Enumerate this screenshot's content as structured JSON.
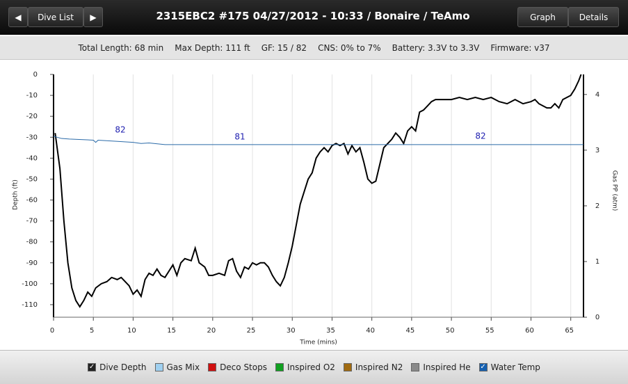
{
  "header": {
    "nav_label": "Dive List",
    "title": "2315EBC2 #175 04/27/2012 - 10:33  / Bonaire / TeAmo",
    "tabs": [
      "Graph",
      "Details"
    ]
  },
  "info": [
    "Total Length: 68 min",
    "Max Depth: 111 ft",
    "GF: 15 / 82",
    "CNS: 0% to 7%",
    "Battery: 3.3V to 3.3V",
    "Firmware: v37"
  ],
  "chart_data": {
    "type": "line",
    "xlabel": "Time (mins)",
    "ylabel": "Depth (ft)",
    "y2label": "Gas PP (atm)",
    "xlim": [
      0,
      66.6
    ],
    "xticks": [
      0,
      5,
      10,
      15,
      20,
      25,
      30,
      35,
      40,
      45,
      50,
      55,
      60,
      65
    ],
    "ylim": [
      -116,
      0
    ],
    "yticks": [
      0,
      -10,
      -20,
      -30,
      -40,
      -50,
      -60,
      -70,
      -80,
      -90,
      -100,
      -110
    ],
    "y2lim": [
      0,
      4.36
    ],
    "y2ticks": [
      0,
      1,
      2,
      3,
      4
    ],
    "grid": true,
    "annotations": [
      "82",
      "81",
      "82"
    ],
    "series": [
      {
        "name": "Dive Depth",
        "color": "#000000",
        "x": [
          0.2,
          0.8,
          1.3,
          1.8,
          2.3,
          2.8,
          3.3,
          3.8,
          4.3,
          4.8,
          5.3,
          6,
          6.7,
          7.3,
          8,
          8.5,
          9,
          9.5,
          10,
          10.5,
          11,
          11.5,
          12,
          12.5,
          13,
          13.5,
          14,
          14.5,
          15,
          15.5,
          16,
          16.5,
          17.3,
          17.8,
          18.3,
          19,
          19.5,
          20,
          20.8,
          21.5,
          22,
          22.5,
          23,
          23.5,
          24,
          24.5,
          25,
          25.5,
          26,
          26.5,
          27,
          27.5,
          28,
          28.5,
          29,
          29.5,
          30,
          30.5,
          31,
          31.5,
          32,
          32.5,
          33,
          33.5,
          34,
          34.5,
          35,
          35.5,
          36,
          36.5,
          37,
          37.5,
          38,
          38.5,
          39,
          39.5,
          40,
          40.5,
          41,
          41.5,
          42,
          42.5,
          43,
          43.5,
          44,
          44.5,
          45,
          45.5,
          46,
          46.5,
          47,
          47.5,
          48,
          49,
          50,
          51,
          52,
          53,
          54,
          55,
          56,
          57,
          58,
          59,
          60,
          60.5,
          61,
          61.5,
          62,
          62.5,
          63,
          63.5,
          64,
          64.5,
          65,
          65.5,
          66,
          66.3
        ],
        "values": [
          -28,
          -45,
          -70,
          -90,
          -102,
          -108,
          -111,
          -108,
          -104,
          -106,
          -102,
          -100,
          -99,
          -97,
          -98,
          -97,
          -99,
          -101,
          -105,
          -103,
          -106,
          -98,
          -95,
          -96,
          -93,
          -96,
          -97,
          -94,
          -91,
          -96,
          -90,
          -88,
          -89,
          -83,
          -90,
          -92,
          -96,
          -96,
          -95,
          -96,
          -89,
          -88,
          -94,
          -97,
          -92,
          -93,
          -90,
          -91,
          -90,
          -90,
          -92,
          -96,
          -99,
          -101,
          -97,
          -90,
          -82,
          -72,
          -62,
          -56,
          -50,
          -47,
          -40,
          -37,
          -35,
          -37,
          -34,
          -33,
          -34,
          -33,
          -38,
          -34,
          -37,
          -35,
          -42,
          -50,
          -52,
          -51,
          -43,
          -35,
          -33,
          -31,
          -28,
          -30,
          -33,
          -27,
          -25,
          -27,
          -18,
          -17,
          -15,
          -13,
          -12,
          -12,
          -12,
          -11,
          -12,
          -11,
          -12,
          -11,
          -13,
          -14,
          -12,
          -14,
          -13,
          -12,
          -14,
          -15,
          -16,
          -16,
          -14,
          -16,
          -12,
          -11,
          -10,
          -7,
          -3,
          0
        ]
      },
      {
        "name": "Gas PP",
        "color": "#2a6aa8",
        "axis": "y2",
        "x": [
          0,
          0.5,
          1,
          2,
          5,
          5.3,
          5.6,
          10,
          11,
          12,
          14,
          15,
          66.6
        ],
        "values": [
          3.25,
          3.23,
          3.21,
          3.2,
          3.18,
          3.14,
          3.18,
          3.14,
          3.12,
          3.13,
          3.1,
          3.1,
          3.1
        ]
      }
    ]
  },
  "legend": [
    {
      "label": "Dive Depth",
      "color": "#222222",
      "checked": true
    },
    {
      "label": "Gas Mix",
      "color": "#9fd0f0",
      "checked": false
    },
    {
      "label": "Deco Stops",
      "color": "#d01010",
      "checked": false
    },
    {
      "label": "Inspired O2",
      "color": "#10a020",
      "checked": false
    },
    {
      "label": "Inspired N2",
      "color": "#a06a10",
      "checked": false
    },
    {
      "label": "Inspired He",
      "color": "#8a8a8a",
      "checked": false
    },
    {
      "label": "Water Temp",
      "color": "#1560b0",
      "checked": true
    }
  ]
}
